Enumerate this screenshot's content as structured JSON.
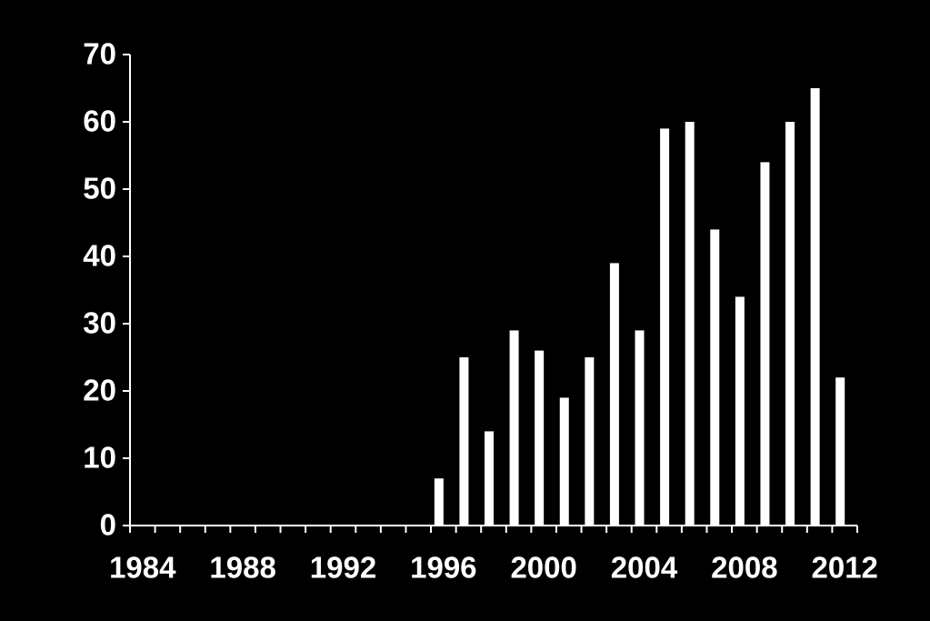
{
  "chart_data": {
    "type": "bar",
    "categories": [
      "1984",
      null,
      null,
      null,
      "1988",
      null,
      null,
      null,
      "1992",
      null,
      null,
      null,
      "1996",
      null,
      null,
      null,
      "2000",
      null,
      null,
      null,
      "2004",
      null,
      null,
      null,
      "2008",
      null,
      null,
      null,
      "2012"
    ],
    "values": [
      null,
      null,
      null,
      null,
      null,
      null,
      null,
      null,
      null,
      null,
      null,
      null,
      7,
      25,
      14,
      29,
      26,
      19,
      25,
      39,
      29,
      59,
      60,
      44,
      34,
      54,
      60,
      65,
      22
    ],
    "color": "#ffffff",
    "ylim": [
      0,
      70
    ],
    "yticks": [
      0,
      10,
      20,
      30,
      40,
      50,
      60,
      70
    ],
    "grid": false
  }
}
